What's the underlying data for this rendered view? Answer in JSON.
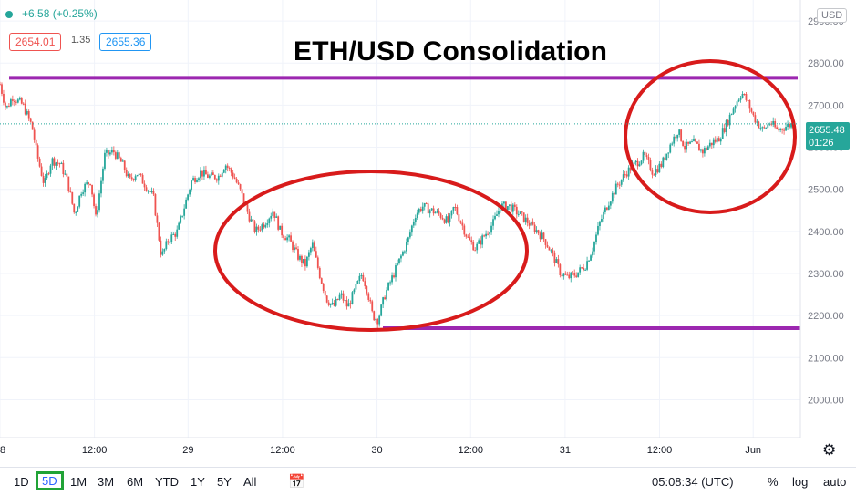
{
  "header": {
    "change_text": "+6.58 (+0.25%)",
    "bid": "2654.01",
    "spread": "1.35",
    "ask": "2655.36"
  },
  "chart_data": {
    "type": "candlestick",
    "title": "ETH/USD Consolidation",
    "currency": "USD",
    "ylim": [
      1910,
      2950
    ],
    "y_ticks": [
      "2900.00",
      "2800.00",
      "2700.00",
      "2600.00",
      "2500.00",
      "2400.00",
      "2300.00",
      "2200.00",
      "2100.00",
      "2000.00"
    ],
    "y_tick_values": [
      2900,
      2800,
      2700,
      2600,
      2500,
      2400,
      2300,
      2200,
      2100,
      2000
    ],
    "x_ticks": [
      "8",
      "12:00",
      "29",
      "12:00",
      "30",
      "12:00",
      "31",
      "12:00",
      "Jun"
    ],
    "last_price": "2655.48",
    "countdown": "01:26",
    "resistance_level": 2765,
    "support_level": 2170,
    "close_path": [
      [
        0.0,
        2750
      ],
      [
        0.7,
        2690
      ],
      [
        1.4,
        2720
      ],
      [
        2.6,
        2700
      ],
      [
        3.6,
        2650
      ],
      [
        4.2,
        2580
      ],
      [
        5.0,
        2510
      ],
      [
        5.8,
        2570
      ],
      [
        6.8,
        2560
      ],
      [
        7.6,
        2520
      ],
      [
        8.4,
        2440
      ],
      [
        9.2,
        2500
      ],
      [
        10.2,
        2520
      ],
      [
        10.8,
        2430
      ],
      [
        11.8,
        2580
      ],
      [
        12.8,
        2590
      ],
      [
        13.8,
        2560
      ],
      [
        14.6,
        2520
      ],
      [
        15.4,
        2540
      ],
      [
        16.4,
        2510
      ],
      [
        17.3,
        2480
      ],
      [
        18.2,
        2340
      ],
      [
        19.0,
        2380
      ],
      [
        20.0,
        2400
      ],
      [
        20.8,
        2460
      ],
      [
        21.6,
        2520
      ],
      [
        22.6,
        2540
      ],
      [
        23.6,
        2530
      ],
      [
        24.6,
        2530
      ],
      [
        25.4,
        2560
      ],
      [
        26.4,
        2530
      ],
      [
        27.2,
        2490
      ],
      [
        28.0,
        2440
      ],
      [
        28.8,
        2400
      ],
      [
        29.8,
        2420
      ],
      [
        30.8,
        2450
      ],
      [
        31.6,
        2400
      ],
      [
        32.6,
        2380
      ],
      [
        33.6,
        2340
      ],
      [
        34.4,
        2320
      ],
      [
        35.2,
        2370
      ],
      [
        36.0,
        2300
      ],
      [
        36.8,
        2240
      ],
      [
        37.6,
        2220
      ],
      [
        38.4,
        2250
      ],
      [
        39.2,
        2220
      ],
      [
        40.0,
        2260
      ],
      [
        40.8,
        2300
      ],
      [
        41.4,
        2260
      ],
      [
        42.0,
        2200
      ],
      [
        42.6,
        2190
      ],
      [
        43.4,
        2250
      ],
      [
        44.2,
        2290
      ],
      [
        45.0,
        2330
      ],
      [
        46.0,
        2380
      ],
      [
        46.8,
        2440
      ],
      [
        47.6,
        2460
      ],
      [
        48.6,
        2450
      ],
      [
        49.6,
        2440
      ],
      [
        50.6,
        2420
      ],
      [
        51.2,
        2460
      ],
      [
        52.0,
        2420
      ],
      [
        52.8,
        2380
      ],
      [
        53.6,
        2360
      ],
      [
        54.6,
        2390
      ],
      [
        55.6,
        2420
      ],
      [
        56.4,
        2460
      ],
      [
        57.4,
        2460
      ],
      [
        58.6,
        2440
      ],
      [
        59.6,
        2420
      ],
      [
        60.6,
        2400
      ],
      [
        61.4,
        2380
      ],
      [
        62.4,
        2340
      ],
      [
        63.2,
        2300
      ],
      [
        64.0,
        2290
      ],
      [
        65.0,
        2300
      ],
      [
        66.0,
        2320
      ],
      [
        66.8,
        2360
      ],
      [
        67.6,
        2420
      ],
      [
        68.6,
        2470
      ],
      [
        69.6,
        2510
      ],
      [
        70.6,
        2540
      ],
      [
        71.6,
        2560
      ],
      [
        72.6,
        2580
      ],
      [
        73.6,
        2540
      ],
      [
        74.6,
        2560
      ],
      [
        75.4,
        2600
      ],
      [
        76.4,
        2640
      ],
      [
        77.2,
        2600
      ],
      [
        78.2,
        2610
      ],
      [
        79.2,
        2590
      ],
      [
        80.2,
        2610
      ],
      [
        81.0,
        2620
      ],
      [
        82.0,
        2660
      ],
      [
        82.8,
        2700
      ],
      [
        83.6,
        2730
      ],
      [
        84.2,
        2710
      ],
      [
        85.0,
        2670
      ],
      [
        86.0,
        2640
      ],
      [
        86.8,
        2660
      ],
      [
        87.6,
        2640
      ],
      [
        88.6,
        2650
      ],
      [
        89.4,
        2655
      ]
    ]
  }
}
